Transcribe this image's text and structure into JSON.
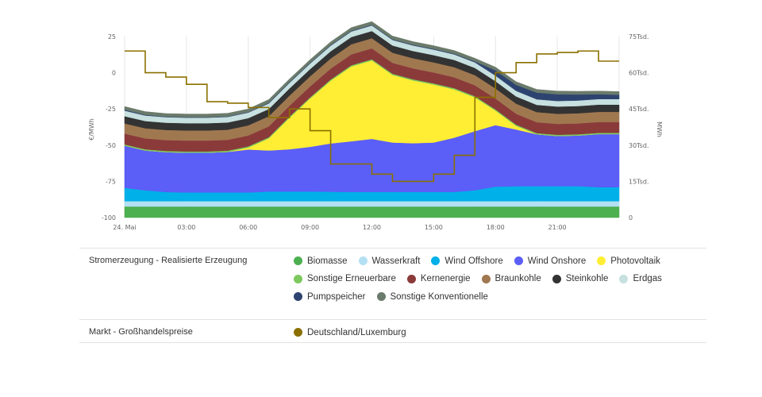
{
  "chart_data": {
    "type": "area",
    "x": [
      "24. Mai",
      "01:00",
      "02:00",
      "03:00",
      "04:00",
      "05:00",
      "06:00",
      "07:00",
      "08:00",
      "09:00",
      "10:00",
      "11:00",
      "12:00",
      "13:00",
      "14:00",
      "15:00",
      "16:00",
      "17:00",
      "18:00",
      "19:00",
      "20:00",
      "21:00",
      "22:00",
      "23:00",
      "24:00"
    ],
    "x_ticks": [
      "24. Mai",
      "03:00",
      "06:00",
      "09:00",
      "12:00",
      "15:00",
      "18:00",
      "21:00"
    ],
    "left_axis": {
      "label": "€/MWh",
      "ticks": [
        "25",
        "0",
        "-25",
        "-50",
        "-75",
        "-100"
      ],
      "range": [
        -100,
        25
      ]
    },
    "right_axis": {
      "label": "MWh",
      "ticks": [
        "75Tsd.",
        "60Tsd.",
        "45Tsd.",
        "30Tsd.",
        "15Tsd.",
        "0"
      ],
      "range": [
        0,
        75000
      ]
    },
    "series": [
      {
        "name": "Biomasse",
        "color": "#4caf50",
        "values": [
          4600,
          4600,
          4600,
          4600,
          4600,
          4600,
          4600,
          4600,
          4600,
          4600,
          4600,
          4600,
          4600,
          4600,
          4600,
          4600,
          4600,
          4600,
          4600,
          4600,
          4600,
          4600,
          4600,
          4600,
          4600
        ]
      },
      {
        "name": "Wasserkraft",
        "color": "#b3e0f2",
        "values": [
          2200,
          2200,
          2200,
          2200,
          2200,
          2200,
          2200,
          2200,
          2200,
          2200,
          2200,
          2200,
          2200,
          2200,
          2200,
          2200,
          2200,
          2200,
          2200,
          2200,
          2200,
          2200,
          2200,
          2200,
          2200
        ]
      },
      {
        "name": "Wind Offshore",
        "color": "#00b0e8",
        "values": [
          5500,
          4500,
          3800,
          3600,
          3600,
          3600,
          3600,
          4000,
          4000,
          4000,
          3900,
          3800,
          3800,
          3800,
          3800,
          3800,
          3800,
          4500,
          6000,
          6200,
          6200,
          6200,
          6200,
          5800,
          5800
        ]
      },
      {
        "name": "Wind Onshore",
        "color": "#5b5ef7",
        "values": [
          17500,
          16500,
          16500,
          16500,
          16500,
          16800,
          17800,
          17000,
          17500,
          18500,
          20000,
          21000,
          22000,
          20500,
          20200,
          20500,
          22500,
          24500,
          25500,
          23500,
          21500,
          20800,
          21000,
          22000,
          22000
        ]
      },
      {
        "name": "Photovoltaik",
        "color": "#ffee33",
        "values": [
          0,
          0,
          0,
          0,
          0,
          0,
          800,
          5000,
          13000,
          20000,
          26000,
          31000,
          32500,
          28000,
          26000,
          24000,
          20000,
          14000,
          6000,
          1500,
          0,
          0,
          0,
          0,
          0
        ]
      },
      {
        "name": "Sonstige Erneuerbare",
        "color": "#7dc95e",
        "values": [
          500,
          500,
          500,
          500,
          500,
          500,
          500,
          500,
          500,
          500,
          500,
          500,
          500,
          500,
          500,
          500,
          500,
          500,
          500,
          500,
          500,
          500,
          500,
          500,
          500
        ]
      },
      {
        "name": "Kernenergie",
        "color": "#8b3a3a",
        "values": [
          4500,
          4500,
          4500,
          4500,
          4500,
          4500,
          4500,
          4500,
          4500,
          4500,
          4500,
          4500,
          4500,
          4500,
          4500,
          4500,
          4500,
          4500,
          4500,
          4500,
          4500,
          4500,
          4500,
          4500,
          4500
        ]
      },
      {
        "name": "Braunkohle",
        "color": "#a07850",
        "values": [
          4200,
          4200,
          4200,
          4200,
          4200,
          4200,
          4200,
          4200,
          4200,
          4200,
          4200,
          4200,
          4200,
          4200,
          4200,
          4200,
          4200,
          4200,
          4200,
          4200,
          4200,
          4200,
          4200,
          4200,
          4200
        ]
      },
      {
        "name": "Steinkohle",
        "color": "#333333",
        "values": [
          3000,
          3000,
          3000,
          3000,
          3000,
          3000,
          3000,
          3000,
          3000,
          3000,
          3000,
          3000,
          3000,
          3000,
          3000,
          3000,
          3000,
          3000,
          3000,
          3000,
          3000,
          3000,
          3000,
          3000,
          3000
        ]
      },
      {
        "name": "Erdgas",
        "color": "#c7e0e0",
        "values": [
          2300,
          2300,
          2300,
          2300,
          2300,
          2300,
          2300,
          2300,
          2300,
          2300,
          2300,
          2300,
          2300,
          2300,
          2300,
          2300,
          2300,
          2300,
          2300,
          2300,
          2300,
          2300,
          2300,
          2300,
          2300
        ]
      },
      {
        "name": "Pumpspeicher",
        "color": "#2e4470",
        "values": [
          400,
          300,
          200,
          200,
          200,
          200,
          200,
          300,
          300,
          300,
          300,
          300,
          300,
          300,
          300,
          300,
          300,
          400,
          2200,
          2500,
          2800,
          2800,
          2500,
          2000,
          1800
        ]
      },
      {
        "name": "Sonstige Konventionelle",
        "color": "#6b7b6b",
        "values": [
          1300,
          1300,
          1300,
          1300,
          1300,
          1300,
          1300,
          1300,
          1300,
          1300,
          1300,
          1300,
          1300,
          1300,
          1300,
          1300,
          1300,
          1300,
          1300,
          1300,
          1300,
          1300,
          1300,
          1300,
          1300
        ]
      }
    ],
    "price_series": {
      "name": "Deutschland/Luxemburg",
      "color": "#8b7000",
      "steps": [
        15,
        0,
        -3,
        -8,
        -20,
        -21,
        -24,
        -31,
        -25,
        -40,
        -63,
        -63,
        -70,
        -75,
        -75,
        -70,
        -57,
        -17,
        0,
        7,
        13,
        14,
        15,
        8,
        8
      ]
    }
  },
  "legend": {
    "generation": {
      "title": "Stromerzeugung - Realisierte Erzeugung",
      "items": [
        {
          "label": "Biomasse",
          "color": "#4caf50"
        },
        {
          "label": "Wasserkraft",
          "color": "#b3e0f2"
        },
        {
          "label": "Wind Offshore",
          "color": "#00b0e8"
        },
        {
          "label": "Wind Onshore",
          "color": "#5b5ef7"
        },
        {
          "label": "Photovoltaik",
          "color": "#ffee33"
        },
        {
          "label": "Sonstige Erneuerbare",
          "color": "#7dc95e"
        },
        {
          "label": "Kernenergie",
          "color": "#8b3a3a"
        },
        {
          "label": "Braunkohle",
          "color": "#a07850"
        },
        {
          "label": "Steinkohle",
          "color": "#333333"
        },
        {
          "label": "Erdgas",
          "color": "#c7e0e0"
        },
        {
          "label": "Pumpspeicher",
          "color": "#2e4470"
        },
        {
          "label": "Sonstige Konventionelle",
          "color": "#6b7b6b"
        }
      ]
    },
    "market": {
      "title": "Markt - Großhandelspreise",
      "items": [
        {
          "label": "Deutschland/Luxemburg",
          "color": "#8b7000"
        }
      ]
    }
  }
}
